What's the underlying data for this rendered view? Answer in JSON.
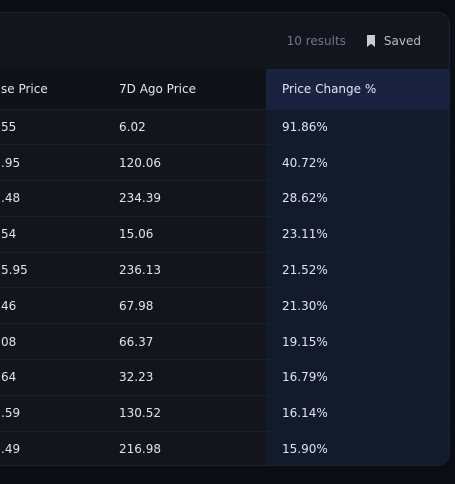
{
  "toolbar": {
    "results_label": "10 results",
    "saved_label": "Saved",
    "saved_icon": "bookmark-icon"
  },
  "table": {
    "columns": [
      "se Price",
      "7D Ago Price",
      "Price Change %"
    ],
    "rows": [
      [
        "55",
        "6.02",
        "91.86%"
      ],
      [
        ".95",
        "120.06",
        "40.72%"
      ],
      [
        ".48",
        "234.39",
        "28.62%"
      ],
      [
        "54",
        "15.06",
        "23.11%"
      ],
      [
        "5.95",
        "236.13",
        "21.52%"
      ],
      [
        "46",
        "67.98",
        "21.30%"
      ],
      [
        "08",
        "66.37",
        "19.15%"
      ],
      [
        "64",
        "32.23",
        "16.79%"
      ],
      [
        ".59",
        "130.52",
        "16.14%"
      ],
      [
        ".49",
        "216.98",
        "15.90%"
      ]
    ]
  },
  "colors": {
    "highlight_header": "#1a2240",
    "highlight_column": "#121a2c",
    "panel": "#12151c"
  }
}
